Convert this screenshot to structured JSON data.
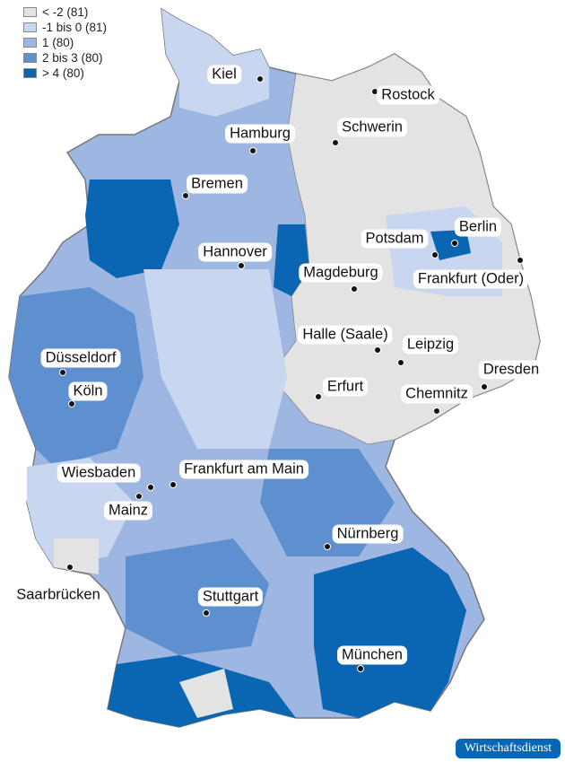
{
  "legend": {
    "items": [
      {
        "label": "< -2 (81)",
        "color": "#e3e3e3"
      },
      {
        "label": "-1 bis 0 (81)",
        "color": "#c8d6ef"
      },
      {
        "label": "1 (80)",
        "color": "#9db6e2"
      },
      {
        "label": "2 bis 3 (80)",
        "color": "#5e8fcf"
      },
      {
        "label": "> 4 (80)",
        "color": "#0a65b2"
      }
    ]
  },
  "cities": [
    "Kiel",
    "Rostock",
    "Schwerin",
    "Hamburg",
    "Bremen",
    "Berlin",
    "Potsdam",
    "Hannover",
    "Magdeburg",
    "Frankfurt (Oder)",
    "Halle (Saale)",
    "Leipzig",
    "Düsseldorf",
    "Dresden",
    "Köln",
    "Erfurt",
    "Chemnitz",
    "Wiesbaden",
    "Frankfurt am Main",
    "Mainz",
    "Nürnberg",
    "Saarbrücken",
    "Stuttgart",
    "München"
  ],
  "source_badge": "Wirtschaftsdienst"
}
